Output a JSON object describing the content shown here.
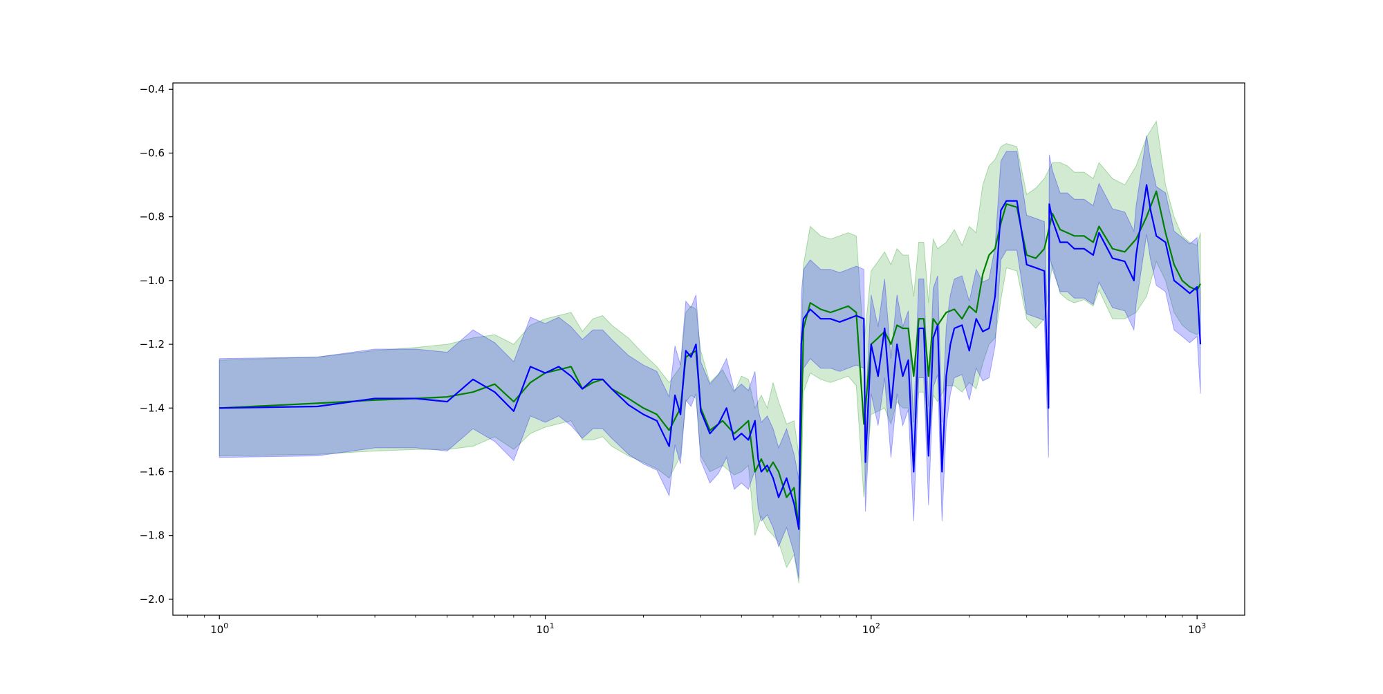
{
  "chart_data": {
    "type": "line",
    "title": "",
    "xlabel": "",
    "ylabel": "",
    "xscale": "log",
    "xlim": [
      0.72,
      1400
    ],
    "ylim": [
      -2.05,
      -0.38
    ],
    "grid": false,
    "legend": "none",
    "x_ticks": [
      {
        "value": 1,
        "base": "10",
        "exp": "0"
      },
      {
        "value": 10,
        "base": "10",
        "exp": "1"
      },
      {
        "value": 100,
        "base": "10",
        "exp": "2"
      },
      {
        "value": 1000,
        "base": "10",
        "exp": "3"
      }
    ],
    "y_ticks": [
      {
        "value": -2.0,
        "label": "−2.0"
      },
      {
        "value": -1.8,
        "label": "−1.8"
      },
      {
        "value": -1.6,
        "label": "−1.6"
      },
      {
        "value": -1.4,
        "label": "−1.4"
      },
      {
        "value": -1.2,
        "label": "−1.2"
      },
      {
        "value": -1.0,
        "label": "−1.0"
      },
      {
        "value": -0.8,
        "label": "−0.8"
      },
      {
        "value": -0.6,
        "label": "−0.6"
      },
      {
        "value": -0.4,
        "label": "−0.4"
      }
    ],
    "series": [
      {
        "color": "#008000",
        "band_color": "#2ca02c",
        "x": [
          1,
          2,
          3,
          4,
          5,
          6,
          7,
          8,
          9,
          10,
          12,
          13,
          14,
          15,
          16,
          18,
          20,
          22,
          24,
          26,
          27,
          28,
          29,
          30,
          32,
          35,
          38,
          40,
          42,
          44,
          46,
          48,
          50,
          52,
          55,
          58,
          60,
          62,
          65,
          70,
          75,
          80,
          85,
          90,
          95,
          100,
          105,
          110,
          115,
          120,
          125,
          130,
          135,
          140,
          145,
          150,
          155,
          160,
          170,
          180,
          190,
          200,
          210,
          220,
          230,
          240,
          250,
          260,
          280,
          300,
          320,
          340,
          360,
          380,
          400,
          420,
          450,
          480,
          500,
          550,
          600,
          650,
          700,
          750,
          800,
          850,
          900,
          950,
          1000,
          1024
        ],
        "y": [
          -1.4,
          -1.385,
          -1.375,
          -1.37,
          -1.365,
          -1.35,
          -1.325,
          -1.38,
          -1.32,
          -1.29,
          -1.27,
          -1.34,
          -1.32,
          -1.31,
          -1.34,
          -1.37,
          -1.4,
          -1.42,
          -1.47,
          -1.4,
          -1.24,
          -1.23,
          -1.22,
          -1.4,
          -1.47,
          -1.44,
          -1.48,
          -1.46,
          -1.44,
          -1.6,
          -1.56,
          -1.6,
          -1.57,
          -1.6,
          -1.68,
          -1.65,
          -1.78,
          -1.15,
          -1.07,
          -1.09,
          -1.1,
          -1.09,
          -1.08,
          -1.1,
          -1.45,
          -1.2,
          -1.18,
          -1.16,
          -1.2,
          -1.14,
          -1.15,
          -1.15,
          -1.3,
          -1.12,
          -1.12,
          -1.3,
          -1.12,
          -1.14,
          -1.1,
          -1.09,
          -1.12,
          -1.08,
          -1.1,
          -0.98,
          -0.92,
          -0.9,
          -0.82,
          -0.76,
          -0.77,
          -0.92,
          -0.93,
          -0.9,
          -0.79,
          -0.84,
          -0.85,
          -0.86,
          -0.86,
          -0.88,
          -0.83,
          -0.9,
          -0.91,
          -0.87,
          -0.8,
          -0.72,
          -0.85,
          -0.95,
          -1.0,
          -1.02,
          -1.03,
          -1.01
        ],
        "y_upper": [
          -1.25,
          -1.24,
          -1.22,
          -1.21,
          -1.2,
          -1.18,
          -1.17,
          -1.2,
          -1.14,
          -1.12,
          -1.1,
          -1.16,
          -1.12,
          -1.11,
          -1.14,
          -1.18,
          -1.23,
          -1.27,
          -1.32,
          -1.27,
          -1.1,
          -1.08,
          -1.09,
          -1.22,
          -1.32,
          -1.28,
          -1.35,
          -1.3,
          -1.31,
          -1.4,
          -1.36,
          -1.4,
          -1.32,
          -1.38,
          -1.45,
          -1.44,
          -1.55,
          -0.95,
          -0.83,
          -0.86,
          -0.87,
          -0.86,
          -0.85,
          -0.86,
          -1.2,
          -0.97,
          -0.94,
          -0.91,
          -0.95,
          -0.9,
          -0.92,
          -0.92,
          -1.05,
          -0.88,
          -0.88,
          -1.07,
          -0.87,
          -0.9,
          -0.88,
          -0.84,
          -0.89,
          -0.83,
          -0.85,
          -0.7,
          -0.64,
          -0.62,
          -0.58,
          -0.57,
          -0.58,
          -0.73,
          -0.71,
          -0.68,
          -0.63,
          -0.63,
          -0.64,
          -0.66,
          -0.66,
          -0.68,
          -0.63,
          -0.68,
          -0.7,
          -0.64,
          -0.55,
          -0.5,
          -0.7,
          -0.8,
          -0.86,
          -0.88,
          -0.89,
          -0.85
        ],
        "y_lower": [
          -1.55,
          -1.545,
          -1.535,
          -1.53,
          -1.53,
          -1.52,
          -1.49,
          -1.53,
          -1.48,
          -1.46,
          -1.44,
          -1.5,
          -1.5,
          -1.49,
          -1.52,
          -1.55,
          -1.57,
          -1.59,
          -1.62,
          -1.55,
          -1.38,
          -1.36,
          -1.37,
          -1.55,
          -1.6,
          -1.58,
          -1.61,
          -1.6,
          -1.58,
          -1.8,
          -1.74,
          -1.78,
          -1.8,
          -1.82,
          -1.9,
          -1.86,
          -1.95,
          -1.35,
          -1.29,
          -1.31,
          -1.32,
          -1.31,
          -1.3,
          -1.33,
          -1.68,
          -1.42,
          -1.41,
          -1.4,
          -1.45,
          -1.38,
          -1.4,
          -1.4,
          -1.53,
          -1.35,
          -1.35,
          -1.53,
          -1.36,
          -1.38,
          -1.33,
          -1.33,
          -1.35,
          -1.32,
          -1.34,
          -1.26,
          -1.2,
          -1.18,
          -1.06,
          -0.96,
          -0.97,
          -1.12,
          -1.15,
          -1.12,
          -0.95,
          -1.04,
          -1.06,
          -1.07,
          -1.06,
          -1.08,
          -1.03,
          -1.12,
          -1.12,
          -1.1,
          -1.05,
          -0.94,
          -1.0,
          -1.1,
          -1.14,
          -1.16,
          -1.17,
          -1.16
        ]
      },
      {
        "color": "#0000ff",
        "band_color": "#0000ff",
        "x": [
          1,
          2,
          3,
          4,
          5,
          6,
          7,
          8,
          9,
          10,
          11,
          12,
          13,
          14,
          15,
          16,
          18,
          20,
          22,
          24,
          25,
          26,
          27,
          28,
          29,
          30,
          32,
          34,
          36,
          38,
          40,
          42,
          44,
          45,
          46,
          48,
          50,
          52,
          55,
          58,
          60,
          61,
          62,
          65,
          70,
          75,
          80,
          85,
          90,
          95,
          96,
          100,
          105,
          110,
          115,
          120,
          125,
          130,
          135,
          140,
          145,
          150,
          155,
          160,
          165,
          170,
          175,
          180,
          190,
          200,
          210,
          220,
          230,
          240,
          250,
          260,
          280,
          300,
          320,
          340,
          350,
          352,
          360,
          380,
          400,
          420,
          450,
          480,
          500,
          550,
          600,
          640,
          650,
          700,
          720,
          750,
          800,
          850,
          900,
          950,
          1000,
          1024
        ],
        "y": [
          -1.4,
          -1.395,
          -1.37,
          -1.37,
          -1.38,
          -1.31,
          -1.35,
          -1.41,
          -1.27,
          -1.29,
          -1.27,
          -1.3,
          -1.34,
          -1.31,
          -1.31,
          -1.34,
          -1.39,
          -1.42,
          -1.44,
          -1.52,
          -1.36,
          -1.42,
          -1.22,
          -1.24,
          -1.2,
          -1.41,
          -1.48,
          -1.45,
          -1.4,
          -1.5,
          -1.48,
          -1.5,
          -1.44,
          -1.56,
          -1.6,
          -1.58,
          -1.62,
          -1.68,
          -1.62,
          -1.7,
          -1.78,
          -1.2,
          -1.12,
          -1.09,
          -1.12,
          -1.12,
          -1.13,
          -1.12,
          -1.11,
          -1.12,
          -1.57,
          -1.2,
          -1.3,
          -1.15,
          -1.4,
          -1.2,
          -1.3,
          -1.25,
          -1.6,
          -1.15,
          -1.15,
          -1.55,
          -1.18,
          -1.14,
          -1.6,
          -1.3,
          -1.2,
          -1.15,
          -1.14,
          -1.22,
          -1.12,
          -1.16,
          -1.15,
          -1.05,
          -0.78,
          -0.75,
          -0.75,
          -0.95,
          -0.96,
          -0.97,
          -1.4,
          -0.76,
          -0.81,
          -0.88,
          -0.88,
          -0.9,
          -0.9,
          -0.92,
          -0.85,
          -0.93,
          -0.94,
          -1.0,
          -0.92,
          -0.7,
          -0.78,
          -0.86,
          -0.88,
          -1.0,
          -1.02,
          -1.04,
          -1.02,
          -1.2
        ]
      }
    ]
  }
}
